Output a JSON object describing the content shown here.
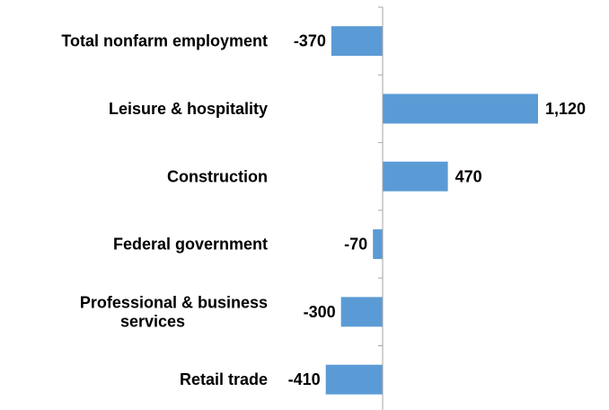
{
  "chart_data": {
    "type": "bar",
    "orientation": "horizontal",
    "categories": [
      "Total nonfarm employment",
      "Leisure & hospitality",
      "Construction",
      "Federal government",
      "Professional & business services",
      "Retail trade"
    ],
    "category_lines": [
      [
        "Total nonfarm employment"
      ],
      [
        "Leisure & hospitality"
      ],
      [
        "Construction"
      ],
      [
        "Federal government"
      ],
      [
        "Professional & business",
        "services"
      ],
      [
        "Retail trade"
      ]
    ],
    "values": [
      -370,
      1120,
      470,
      -70,
      -300,
      -410
    ],
    "value_labels": [
      "-370",
      "1,120",
      "470",
      "-70",
      "-300",
      "-410"
    ],
    "xlim": [
      -1400,
      1400
    ],
    "grid": false,
    "bar_color": "#5B9BD5",
    "axis_color": "#A6A6A6"
  }
}
